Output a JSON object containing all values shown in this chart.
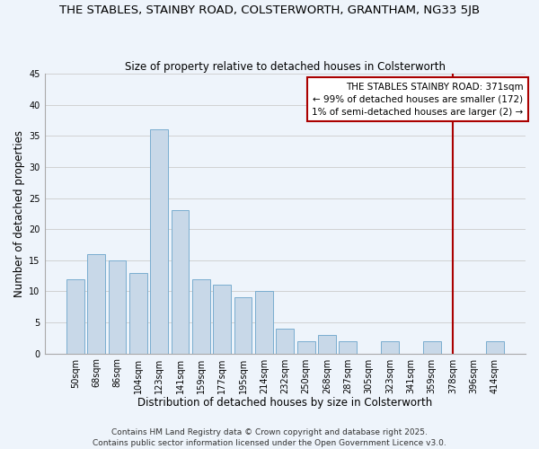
{
  "title": "THE STABLES, STAINBY ROAD, COLSTERWORTH, GRANTHAM, NG33 5JB",
  "subtitle": "Size of property relative to detached houses in Colsterworth",
  "xlabel": "Distribution of detached houses by size in Colsterworth",
  "ylabel": "Number of detached properties",
  "bar_labels": [
    "50sqm",
    "68sqm",
    "86sqm",
    "104sqm",
    "123sqm",
    "141sqm",
    "159sqm",
    "177sqm",
    "195sqm",
    "214sqm",
    "232sqm",
    "250sqm",
    "268sqm",
    "287sqm",
    "305sqm",
    "323sqm",
    "341sqm",
    "359sqm",
    "378sqm",
    "396sqm",
    "414sqm"
  ],
  "bar_values": [
    12,
    16,
    15,
    13,
    36,
    23,
    12,
    11,
    9,
    10,
    4,
    2,
    3,
    2,
    0,
    2,
    0,
    2,
    0,
    0,
    2
  ],
  "bar_color": "#c8d8e8",
  "bar_edge_color": "#7aadcf",
  "grid_color": "#cccccc",
  "vline_color": "#aa0000",
  "annotation_title": "THE STABLES STAINBY ROAD: 371sqm",
  "annotation_line1": "← 99% of detached houses are smaller (172)",
  "annotation_line2": "1% of semi-detached houses are larger (2) →",
  "annotation_box_color": "#ffffff",
  "annotation_border_color": "#aa0000",
  "ylim": [
    0,
    45
  ],
  "yticks": [
    0,
    5,
    10,
    15,
    20,
    25,
    30,
    35,
    40,
    45
  ],
  "footer_line1": "Contains HM Land Registry data © Crown copyright and database right 2025.",
  "footer_line2": "Contains public sector information licensed under the Open Government Licence v3.0.",
  "background_color": "#eef4fb",
  "title_fontsize": 9.5,
  "subtitle_fontsize": 8.5,
  "axis_label_fontsize": 8.5,
  "tick_fontsize": 7,
  "annotation_fontsize": 7.5,
  "footer_fontsize": 6.5
}
